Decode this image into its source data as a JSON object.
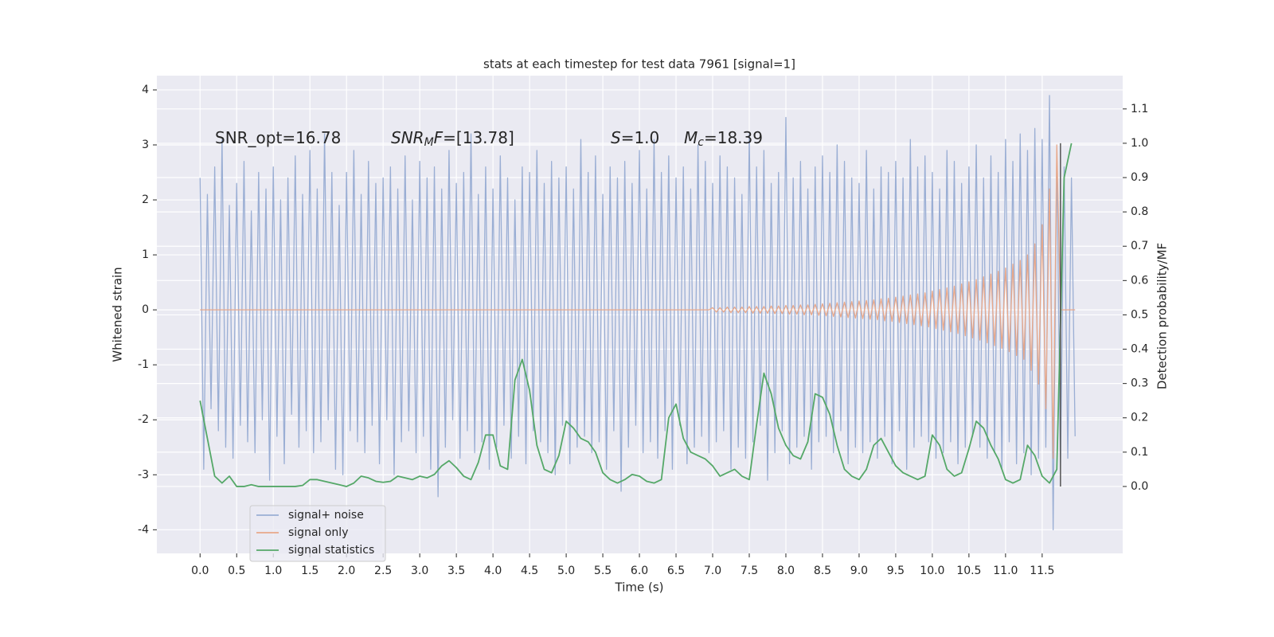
{
  "chart_data": {
    "type": "line",
    "title": "stats at each timestep for test data 7961 [signal=1]",
    "xlabel": "Time (s)",
    "ylabel": "Whitened strain",
    "y2label": "Detection probability/MF",
    "annotations": [
      [
        {
          "text": "SNR_opt=16.78",
          "style": "normal"
        }
      ],
      [
        {
          "text": "SNR",
          "style": "italic"
        },
        {
          "text": "M",
          "style": "sub"
        },
        {
          "text": "F",
          "style": "italic"
        },
        {
          "text": "=[13.78]",
          "style": "normal"
        }
      ],
      [
        {
          "text": "S",
          "style": "italic"
        },
        {
          "text": "=1.0",
          "style": "normal"
        }
      ],
      [
        {
          "text": "M",
          "style": "italic"
        },
        {
          "text": "c",
          "style": "sub"
        },
        {
          "text": "=18.39",
          "style": "normal"
        }
      ]
    ],
    "xlim": [
      -0.59,
      12.6
    ],
    "ylim": [
      -4.43,
      4.26
    ],
    "y2lim": [
      -0.195,
      1.197
    ],
    "xticks": [
      {
        "value": 0,
        "label": "0.0"
      },
      0.5,
      {
        "value": 1,
        "label": "1.0"
      },
      1.5,
      {
        "value": 2,
        "label": "2.0"
      },
      2.5,
      {
        "value": 3,
        "label": "3.0"
      },
      3.5,
      {
        "value": 4,
        "label": "4.0"
      },
      4.5,
      {
        "value": 5,
        "label": "5.0"
      },
      5.5,
      {
        "value": 6,
        "label": "6.0"
      },
      6.5,
      {
        "value": 7,
        "label": "7.0"
      },
      7.5,
      {
        "value": 8,
        "label": "8.0"
      },
      8.5,
      {
        "value": 9,
        "label": "9.0"
      },
      9.5,
      {
        "value": 10,
        "label": "10.0"
      },
      10.5,
      {
        "value": 11,
        "label": "11.0"
      },
      11.5
    ],
    "yticks": [
      -4,
      -3,
      -2,
      -1,
      0,
      1,
      2,
      3,
      4
    ],
    "y2ticks": [
      {
        "value": 0,
        "label": "0.0"
      },
      0.1,
      0.2,
      0.3,
      0.4,
      0.5,
      0.6,
      0.7,
      0.8,
      0.9,
      {
        "value": 1,
        "label": "1.0"
      },
      1.1
    ],
    "grid": true,
    "legend": "lower left",
    "x": [
      0,
      0.05,
      0.1,
      0.15,
      0.2,
      0.25,
      0.3,
      0.35,
      0.4,
      0.45,
      0.5,
      0.55,
      0.6,
      0.65,
      0.7,
      0.75,
      0.8,
      0.85,
      0.9,
      0.95,
      1,
      1.05,
      1.1,
      1.15,
      1.2,
      1.25,
      1.3,
      1.35,
      1.4,
      1.45,
      1.5,
      1.55,
      1.6,
      1.65,
      1.7,
      1.75,
      1.8,
      1.85,
      1.9,
      1.95,
      2,
      2.05,
      2.1,
      2.15,
      2.2,
      2.25,
      2.3,
      2.35,
      2.4,
      2.45,
      2.5,
      2.55,
      2.6,
      2.65,
      2.7,
      2.75,
      2.8,
      2.85,
      2.9,
      2.95,
      3,
      3.05,
      3.1,
      3.15,
      3.2,
      3.25,
      3.3,
      3.35,
      3.4,
      3.45,
      3.5,
      3.55,
      3.6,
      3.65,
      3.7,
      3.75,
      3.8,
      3.85,
      3.9,
      3.95,
      4,
      4.05,
      4.1,
      4.15,
      4.2,
      4.25,
      4.3,
      4.35,
      4.4,
      4.45,
      4.5,
      4.55,
      4.6,
      4.65,
      4.7,
      4.75,
      4.8,
      4.85,
      4.9,
      4.95,
      5,
      5.05,
      5.1,
      5.15,
      5.2,
      5.25,
      5.3,
      5.35,
      5.4,
      5.45,
      5.5,
      5.55,
      5.6,
      5.65,
      5.7,
      5.75,
      5.8,
      5.85,
      5.9,
      5.95,
      6,
      6.05,
      6.1,
      6.15,
      6.2,
      6.25,
      6.3,
      6.35,
      6.4,
      6.45,
      6.5,
      6.55,
      6.6,
      6.65,
      6.7,
      6.75,
      6.8,
      6.85,
      6.9,
      6.95,
      7,
      7.05,
      7.1,
      7.15,
      7.2,
      7.25,
      7.3,
      7.35,
      7.4,
      7.45,
      7.5,
      7.55,
      7.6,
      7.65,
      7.7,
      7.75,
      7.8,
      7.85,
      7.9,
      7.95,
      8,
      8.05,
      8.1,
      8.15,
      8.2,
      8.25,
      8.3,
      8.35,
      8.4,
      8.45,
      8.5,
      8.55,
      8.6,
      8.65,
      8.7,
      8.75,
      8.8,
      8.85,
      8.9,
      8.95,
      9,
      9.05,
      9.1,
      9.15,
      9.2,
      9.25,
      9.3,
      9.35,
      9.4,
      9.45,
      9.5,
      9.55,
      9.6,
      9.65,
      9.7,
      9.75,
      9.8,
      9.85,
      9.9,
      9.95,
      10,
      10.05,
      10.1,
      10.15,
      10.2,
      10.25,
      10.3,
      10.35,
      10.4,
      10.45,
      10.5,
      10.55,
      10.6,
      10.65,
      10.7,
      10.75,
      10.8,
      10.85,
      10.9,
      10.95,
      11,
      11.05,
      11.1,
      11.15,
      11.2,
      11.25,
      11.3,
      11.35,
      11.4,
      11.45,
      11.5,
      11.55,
      11.6,
      11.65,
      11.7,
      11.75,
      11.8,
      11.85,
      11.9,
      11.95
    ],
    "series": [
      {
        "name": "signal+ noise",
        "color": "#9aaed4",
        "values": [
          2.4,
          -2.9,
          2.1,
          -1.8,
          2.6,
          -2.2,
          3.1,
          -2.5,
          1.9,
          -2.7,
          2.3,
          -2.1,
          2.7,
          -2.4,
          1.8,
          -2.6,
          2.5,
          -2.0,
          2.2,
          -3.1,
          2.6,
          -2.3,
          2.0,
          -2.8,
          2.4,
          -1.9,
          2.8,
          -2.5,
          2.1,
          -2.2,
          2.9,
          -2.6,
          2.2,
          -2.4,
          3.2,
          -2.0,
          2.5,
          -2.9,
          1.9,
          -3.0,
          2.5,
          -2.2,
          2.9,
          -2.4,
          2.1,
          -2.6,
          2.7,
          -2.1,
          2.3,
          -2.8,
          2.4,
          -2.0,
          2.6,
          -3.0,
          2.2,
          -2.4,
          2.8,
          -2.2,
          2.0,
          -2.6,
          2.7,
          -2.3,
          2.4,
          -2.9,
          2.6,
          -3.4,
          2.2,
          -2.5,
          2.9,
          -2.0,
          2.3,
          -2.7,
          2.5,
          -2.2,
          3.2,
          -2.6,
          2.1,
          -2.4,
          2.6,
          -2.9,
          2.2,
          -2.5,
          2.8,
          -2.1,
          2.4,
          -2.7,
          2.0,
          -2.3,
          2.6,
          -2.8,
          2.5,
          -2.2,
          2.9,
          -2.4,
          2.3,
          -2.6,
          2.7,
          -3.0,
          2.4,
          -2.1,
          2.6,
          -2.8,
          2.2,
          -2.5,
          3.1,
          -2.3,
          2.5,
          -2.6,
          2.8,
          -2.4,
          2.1,
          -2.9,
          2.6,
          -2.2,
          2.4,
          -3.3,
          2.7,
          -2.5,
          2.3,
          -2.1,
          2.9,
          -2.6,
          2.2,
          -2.4,
          3.1,
          -2.7,
          2.5,
          -2.2,
          2.8,
          -2.9,
          2.4,
          -2.1,
          2.6,
          -2.8,
          2.2,
          -2.5,
          3.0,
          -2.3,
          2.7,
          -2.6,
          2.3,
          -2.4,
          2.8,
          -2.2,
          2.6,
          -2.9,
          2.4,
          -2.5,
          2.1,
          -2.7,
          3.2,
          -2.4,
          2.6,
          -2.1,
          2.9,
          -3.1,
          2.3,
          -2.6,
          2.5,
          -2.2,
          3.5,
          -2.8,
          2.4,
          -2.5,
          2.7,
          -2.3,
          2.2,
          -2.9,
          2.6,
          -2.4,
          2.8,
          -2.3,
          2.5,
          -2.6,
          3.0,
          -2.2,
          2.7,
          -2.8,
          2.4,
          -2.5,
          2.3,
          -2.6,
          2.9,
          -2.4,
          2.2,
          -2.7,
          2.6,
          -2.3,
          2.5,
          -2.8,
          2.7,
          -2.2,
          2.4,
          -2.9,
          3.1,
          -2.5,
          2.6,
          -2.3,
          2.8,
          -2.4,
          2.5,
          -2.7,
          2.2,
          -2.6,
          2.9,
          -2.4,
          2.7,
          -2.8,
          2.3,
          -2.5,
          2.6,
          -2.3,
          3.0,
          -2.5,
          2.4,
          -2.7,
          2.8,
          -2.6,
          2.5,
          -2.9,
          3.1,
          -2.4,
          2.7,
          -2.8,
          3.2,
          -2.6,
          2.9,
          -3.0,
          3.3,
          -2.7,
          3.1,
          -2.5,
          3.9,
          -4.0,
          2.8,
          -2.9,
          2.6,
          -2.7,
          2.4,
          -2.3
        ]
      },
      {
        "name": "signal only",
        "color": "#e8a88a",
        "values": [
          0,
          0,
          0,
          0,
          0,
          0,
          0,
          0,
          0,
          0,
          0,
          0,
          0,
          0,
          0,
          0,
          0,
          0,
          0,
          0,
          0,
          0,
          0,
          0,
          0,
          0,
          0,
          0,
          0,
          0,
          0,
          0,
          0,
          0,
          0,
          0,
          0,
          0,
          0,
          0,
          0,
          0,
          0,
          0,
          0,
          0,
          0,
          0,
          0,
          0,
          0,
          0,
          0,
          0,
          0,
          0,
          0,
          0,
          0,
          0,
          0,
          0,
          0,
          0,
          0,
          0,
          0,
          0,
          0,
          0,
          0,
          0,
          0,
          0,
          0,
          0,
          0,
          0,
          0,
          0,
          0,
          0,
          0,
          0,
          0,
          0,
          0,
          0,
          0,
          0,
          0,
          0,
          0,
          0,
          0,
          0,
          0,
          0,
          0,
          0,
          0,
          0,
          0,
          0,
          0,
          0,
          0,
          0,
          0,
          0,
          0,
          0,
          0,
          0,
          0,
          0,
          0,
          0,
          0,
          0,
          0,
          0,
          0,
          0,
          0,
          0,
          0,
          0,
          0,
          0,
          0,
          0,
          0,
          0,
          0,
          0,
          0,
          0,
          0,
          0,
          0.04,
          -0.04,
          0.04,
          -0.04,
          0.05,
          -0.05,
          0.05,
          -0.05,
          0.05,
          -0.05,
          0.06,
          -0.06,
          0.06,
          -0.06,
          0.06,
          -0.06,
          0.07,
          -0.07,
          0.07,
          -0.07,
          0.08,
          -0.08,
          0.08,
          -0.08,
          0.09,
          -0.09,
          0.09,
          -0.09,
          0.1,
          -0.1,
          0.11,
          -0.11,
          0.12,
          -0.12,
          0.13,
          -0.13,
          0.14,
          -0.14,
          0.15,
          -0.15,
          0.16,
          -0.16,
          0.17,
          -0.17,
          0.18,
          -0.18,
          0.2,
          -0.2,
          0.21,
          -0.21,
          0.23,
          -0.23,
          0.25,
          -0.25,
          0.27,
          -0.27,
          0.29,
          -0.29,
          0.31,
          -0.31,
          0.34,
          -0.34,
          0.37,
          -0.37,
          0.4,
          -0.4,
          0.43,
          -0.43,
          0.47,
          -0.47,
          0.51,
          -0.51,
          0.55,
          -0.55,
          0.6,
          -0.6,
          0.65,
          -0.65,
          0.7,
          -0.7,
          0.76,
          -0.76,
          0.83,
          -0.83,
          0.9,
          -0.9,
          1.0,
          -1.1,
          1.2,
          -1.35,
          1.55,
          -1.8,
          2.2,
          -2.7,
          3.0,
          0,
          0,
          0,
          0,
          0
        ]
      },
      {
        "name": "signal statistics",
        "color": "#55a868",
        "axis": "y2",
        "x": [
          0,
          0.1,
          0.2,
          0.3,
          0.4,
          0.5,
          0.6,
          0.7,
          0.8,
          0.9,
          1,
          1.1,
          1.2,
          1.3,
          1.4,
          1.5,
          1.6,
          1.7,
          1.8,
          1.9,
          2,
          2.1,
          2.2,
          2.3,
          2.4,
          2.5,
          2.6,
          2.7,
          2.8,
          2.9,
          3,
          3.1,
          3.2,
          3.3,
          3.4,
          3.5,
          3.6,
          3.7,
          3.8,
          3.9,
          4,
          4.1,
          4.2,
          4.3,
          4.4,
          4.5,
          4.6,
          4.7,
          4.8,
          4.9,
          5,
          5.1,
          5.2,
          5.3,
          5.4,
          5.5,
          5.6,
          5.7,
          5.8,
          5.9,
          6,
          6.1,
          6.2,
          6.3,
          6.4,
          6.5,
          6.6,
          6.7,
          6.8,
          6.9,
          7,
          7.1,
          7.2,
          7.3,
          7.4,
          7.5,
          7.6,
          7.7,
          7.8,
          7.9,
          8,
          8.1,
          8.2,
          8.3,
          8.4,
          8.5,
          8.6,
          8.7,
          8.8,
          8.9,
          9,
          9.1,
          9.2,
          9.3,
          9.4,
          9.5,
          9.6,
          9.7,
          9.8,
          9.9,
          10,
          10.1,
          10.2,
          10.3,
          10.4,
          10.5,
          10.6,
          10.7,
          10.8,
          10.9,
          11,
          11.1,
          11.2,
          11.3,
          11.4,
          11.5,
          11.6,
          11.7,
          11.8,
          11.9
        ],
        "values": [
          0.25,
          0.14,
          0.03,
          0.01,
          0.03,
          0.0,
          0.0,
          0.005,
          0.0,
          0.0,
          0.0,
          0.0,
          0.0,
          0.0,
          0.003,
          0.02,
          0.02,
          0.015,
          0.01,
          0.005,
          0.0,
          0.01,
          0.03,
          0.025,
          0.015,
          0.012,
          0.015,
          0.03,
          0.025,
          0.02,
          0.03,
          0.025,
          0.035,
          0.06,
          0.075,
          0.055,
          0.03,
          0.02,
          0.07,
          0.15,
          0.15,
          0.06,
          0.05,
          0.31,
          0.37,
          0.28,
          0.12,
          0.05,
          0.04,
          0.09,
          0.19,
          0.17,
          0.14,
          0.13,
          0.1,
          0.04,
          0.02,
          0.01,
          0.02,
          0.035,
          0.03,
          0.015,
          0.01,
          0.02,
          0.2,
          0.24,
          0.14,
          0.1,
          0.09,
          0.08,
          0.06,
          0.03,
          0.04,
          0.05,
          0.03,
          0.02,
          0.18,
          0.33,
          0.27,
          0.17,
          0.12,
          0.09,
          0.08,
          0.13,
          0.27,
          0.26,
          0.21,
          0.12,
          0.05,
          0.03,
          0.02,
          0.05,
          0.12,
          0.14,
          0.1,
          0.06,
          0.04,
          0.03,
          0.02,
          0.03,
          0.15,
          0.12,
          0.05,
          0.03,
          0.04,
          0.11,
          0.19,
          0.17,
          0.12,
          0.08,
          0.02,
          0.01,
          0.02,
          0.12,
          0.09,
          0.03,
          0.01,
          0.05,
          0.9,
          1.0
        ]
      }
    ],
    "vline": {
      "x": 11.75,
      "y2range": [
        0,
        1
      ],
      "color": "#555555"
    }
  }
}
